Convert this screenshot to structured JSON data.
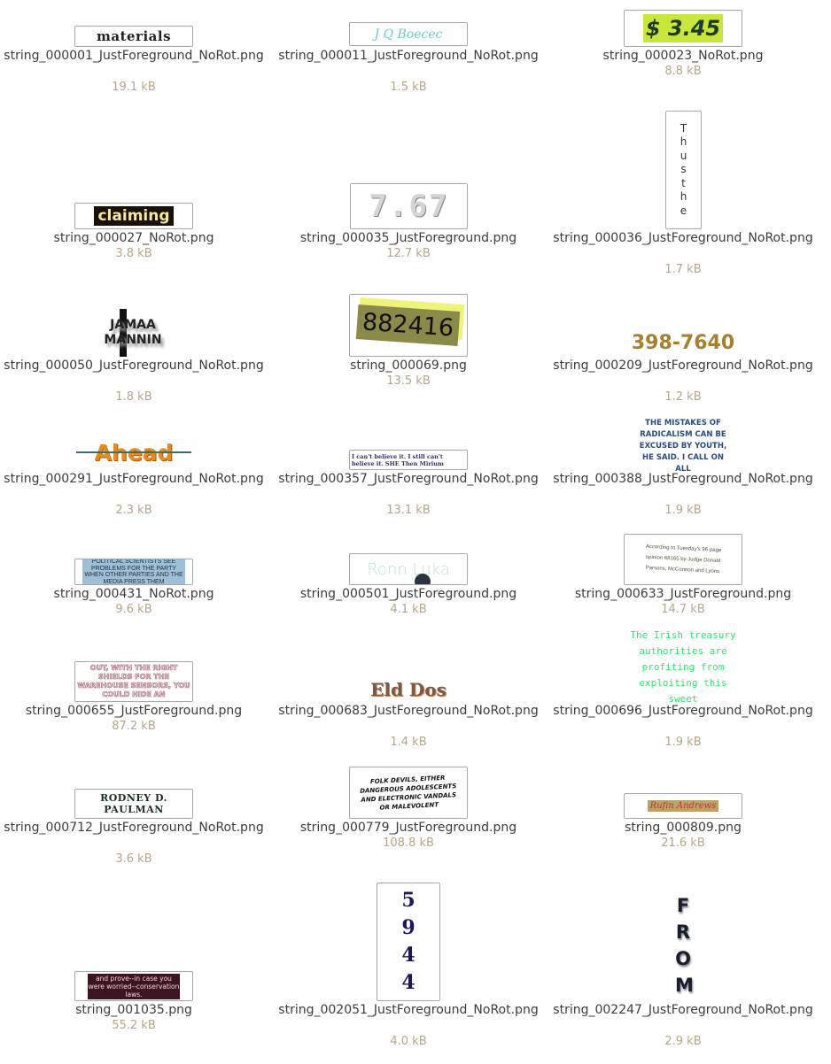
{
  "files": [
    {
      "name": "string_000001_JustForeground_NoRot.png",
      "size": "19.1 kB",
      "preview_text": "materials"
    },
    {
      "name": "string_000011_JustForeground_NoRot.png",
      "size": "1.5 kB",
      "preview_text": "J Q Boecec"
    },
    {
      "name": "string_000023_NoRot.png",
      "size": "8.8 kB",
      "preview_text": "$ 3.45"
    },
    {
      "name": "string_000027_NoRot.png",
      "size": "3.8 kB",
      "preview_text": "claiming"
    },
    {
      "name": "string_000035_JustForeground.png",
      "size": "12.7 kB",
      "preview_text": "7.67"
    },
    {
      "name": "string_000036_JustForeground_NoRot.png",
      "size": "1.7 kB",
      "preview_text": "Thus the"
    },
    {
      "name": "string_000050_JustForeground_NoRot.png",
      "size": "1.8 kB",
      "preview_text": "JAMAA MANNIN"
    },
    {
      "name": "string_000069.png",
      "size": "13.5 kB",
      "preview_text": "882416"
    },
    {
      "name": "string_000209_JustForeground_NoRot.png",
      "size": "1.2 kB",
      "preview_text": "398-7640"
    },
    {
      "name": "string_000291_JustForeground_NoRot.png",
      "size": "2.3 kB",
      "preview_text": "Ahead"
    },
    {
      "name": "string_000357_JustForeground_NoRot.png",
      "size": "13.1 kB",
      "preview_text": "I can't believe it. I still can't believe it. SHE Then Mirium"
    },
    {
      "name": "string_000388_JustForeground_NoRot.png",
      "size": "1.9 kB",
      "preview_text": "THE MISTAKES OF RADICALISM CAN BE EXCUSED BY YOUTH, HE SAID. I CALL ON ALL"
    },
    {
      "name": "string_000431_NoRot.png",
      "size": "9.6 kB",
      "preview_text": "POLITICAL SCIENTISTS SEE PROBLEMS FOR THE PARTY WHEN OTHER PARTIES AND THE MEDIA PRESS THEM"
    },
    {
      "name": "string_000501_JustForeground.png",
      "size": "4.1 kB",
      "preview_text": "Ronn Luka"
    },
    {
      "name": "string_000633_JustForeground.png",
      "size": "14.7 kB",
      "preview_text": "According to Tuesday's 96-page opinion 68165 by Judge Donald Parsons, McConnon and Lyons"
    },
    {
      "name": "string_000655_JustForeground.png",
      "size": "87.2 kB",
      "preview_text": "OUT, WITH THE RIGHT SHIELDS FOR THE WAREHOUSE SENSORS, YOU COULD HIDE AN"
    },
    {
      "name": "string_000683_JustForeground_NoRot.png",
      "size": "1.4 kB",
      "preview_text": "Eld Dos"
    },
    {
      "name": "string_000696_JustForeground_NoRot.png",
      "size": "1.9 kB",
      "preview_text": "The Irish treasury authorities are profiting from exploiting this sweet"
    },
    {
      "name": "string_000712_JustForeground_NoRot.png",
      "size": "3.6 kB",
      "preview_text": "RODNEY D. PAULMAN"
    },
    {
      "name": "string_000779_JustForeground.png",
      "size": "108.8 kB",
      "preview_text": "FOLK DEVILS, EITHER DANGEROUS ADOLESCENTS AND ELECTRONIC VANDALS OR MALEVOLENT"
    },
    {
      "name": "string_000809.png",
      "size": "21.6 kB",
      "preview_text": "Rufin Andrews"
    },
    {
      "name": "string_001035.png",
      "size": "55.2 kB",
      "preview_text": "and prove--in case you were worried--conservation laws."
    },
    {
      "name": "string_002051_JustForeground_NoRot.png",
      "size": "4.0 kB",
      "preview_text": "5944"
    },
    {
      "name": "string_002247_JustForeground_NoRot.png",
      "size": "2.9 kB",
      "preview_text": "FROM"
    }
  ]
}
